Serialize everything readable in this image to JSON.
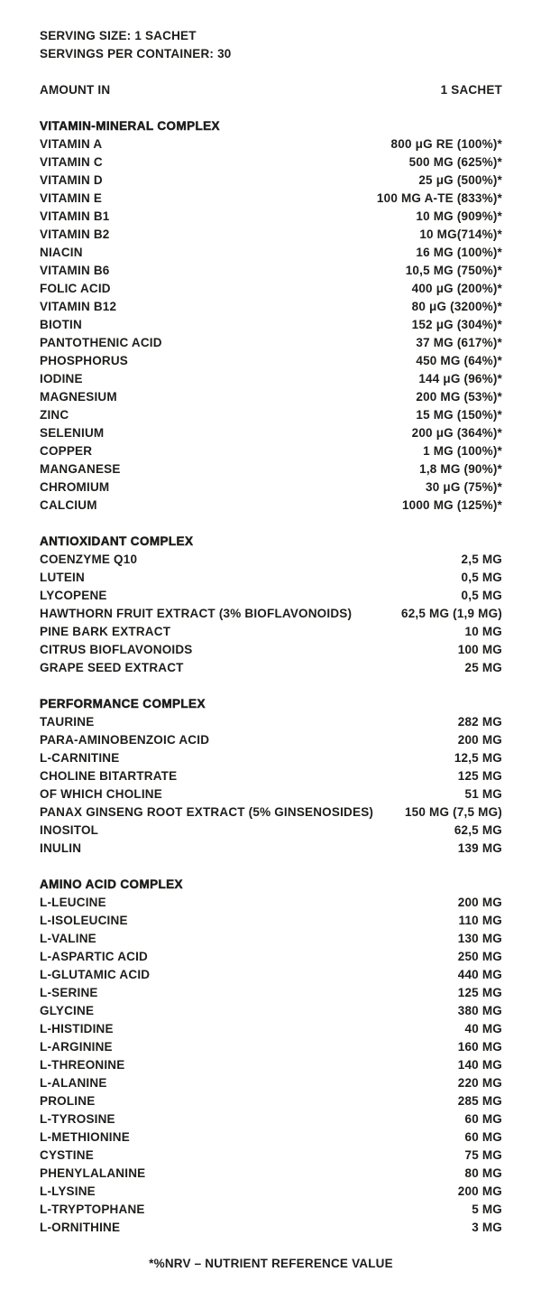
{
  "colors": {
    "background": "#ffffff",
    "text": "#1d1d1b"
  },
  "header": {
    "serving_size": "SERVING SIZE: 1 SACHET",
    "servings_per_container": "SERVINGS PER CONTAINER: 30"
  },
  "columns": {
    "amount_in": "AMOUNT IN",
    "per_serving": "1 SACHET"
  },
  "sections": [
    {
      "title": "VITAMIN-MINERAL COMPLEX",
      "rows": [
        {
          "label": "VITAMIN A",
          "value": "800 μG RE (100%)*"
        },
        {
          "label": "VITAMIN C",
          "value": "500 MG (625%)*"
        },
        {
          "label": "VITAMIN D",
          "value": "25 μG (500%)*"
        },
        {
          "label": "VITAMIN E",
          "value": "100 MG A-TE (833%)*"
        },
        {
          "label": "VITAMIN B1",
          "value": "10 MG (909%)*"
        },
        {
          "label": "VITAMIN B2",
          "value": "10 MG(714%)*"
        },
        {
          "label": "NIACIN",
          "value": "16 MG (100%)*"
        },
        {
          "label": "VITAMIN B6",
          "value": "10,5 MG (750%)*"
        },
        {
          "label": "FOLIC ACID",
          "value": "400 μG (200%)*"
        },
        {
          "label": "VITAMIN B12",
          "value": "80 μG (3200%)*"
        },
        {
          "label": "BIOTIN",
          "value": "152 μG (304%)*"
        },
        {
          "label": "PANTOTHENIC ACID",
          "value": "37 MG (617%)*"
        },
        {
          "label": "PHOSPHORUS",
          "value": "450 MG (64%)*"
        },
        {
          "label": "IODINE",
          "value": "144 μG (96%)*"
        },
        {
          "label": "MAGNESIUM",
          "value": "200 MG (53%)*"
        },
        {
          "label": "ZINC",
          "value": "15 MG (150%)*"
        },
        {
          "label": "SELENIUM",
          "value": "200 μG (364%)*"
        },
        {
          "label": "COPPER",
          "value": "1 MG (100%)*"
        },
        {
          "label": "MANGANESE",
          "value": "1,8 MG (90%)*"
        },
        {
          "label": "CHROMIUM",
          "value": "30 μG (75%)*"
        },
        {
          "label": "CALCIUM",
          "value": "1000 MG (125%)*"
        }
      ]
    },
    {
      "title": "ANTIOXIDANT COMPLEX",
      "rows": [
        {
          "label": "COENZYME Q10",
          "value": "2,5 MG"
        },
        {
          "label": "LUTEIN",
          "value": "0,5 MG"
        },
        {
          "label": "LYCOPENE",
          "value": "0,5 MG"
        },
        {
          "label": "HAWTHORN FRUIT EXTRACT (3% BIOFLAVONOIDS)",
          "value": "62,5 MG (1,9 MG)"
        },
        {
          "label": "PINE BARK EXTRACT",
          "value": "10 MG"
        },
        {
          "label": "CITRUS BIOFLAVONOIDS",
          "value": "100 MG"
        },
        {
          "label": "GRAPE SEED EXTRACT",
          "value": "25 MG"
        }
      ]
    },
    {
      "title": "PERFORMANCE COMPLEX",
      "rows": [
        {
          "label": "TAURINE",
          "value": "282 MG"
        },
        {
          "label": "PARA-AMINOBENZOIC ACID",
          "value": "200 MG"
        },
        {
          "label": "L-CARNITINE",
          "value": "12,5 MG"
        },
        {
          "label": "CHOLINE BITARTRATE",
          "value": "125 MG"
        },
        {
          "label": "OF WHICH CHOLINE",
          "value": "51 MG"
        },
        {
          "label": "PANAX GINSENG ROOT EXTRACT (5% GINSENOSIDES)",
          "value": "150 MG (7,5 MG)"
        },
        {
          "label": "INOSITOL",
          "value": "62,5 MG"
        },
        {
          "label": "INULIN",
          "value": "139 MG"
        }
      ]
    },
    {
      "title": "AMINO ACID COMPLEX",
      "rows": [
        {
          "label": "L-LEUCINE",
          "value": "200 MG"
        },
        {
          "label": "L-ISOLEUCINE",
          "value": "110 MG"
        },
        {
          "label": "L-VALINE",
          "value": "130 MG"
        },
        {
          "label": "L-ASPARTIC ACID",
          "value": "250 MG"
        },
        {
          "label": "L-GLUTAMIC ACID",
          "value": "440 MG"
        },
        {
          "label": "L-SERINE",
          "value": "125 MG"
        },
        {
          "label": "GLYCINE",
          "value": "380 MG"
        },
        {
          "label": "L-HISTIDINE",
          "value": "40 MG"
        },
        {
          "label": "L-ARGININE",
          "value": "160 MG"
        },
        {
          "label": "L-THREONINE",
          "value": "140 MG"
        },
        {
          "label": "L-ALANINE",
          "value": "220 MG"
        },
        {
          "label": "PROLINE",
          "value": "285 MG"
        },
        {
          "label": "L-TYROSINE",
          "value": "60 MG"
        },
        {
          "label": "L-METHIONINE",
          "value": "60 MG"
        },
        {
          "label": "CYSTINE",
          "value": "75 MG"
        },
        {
          "label": "PHENYLALANINE",
          "value": "80 MG"
        },
        {
          "label": "L-LYSINE",
          "value": "200 MG"
        },
        {
          "label": "L-TRYPTOPHANE",
          "value": "5 MG"
        },
        {
          "label": "L-ORNITHINE",
          "value": "3 MG"
        }
      ]
    }
  ],
  "footer": {
    "note": "*%NRV – NUTRIENT REFERENCE VALUE"
  }
}
